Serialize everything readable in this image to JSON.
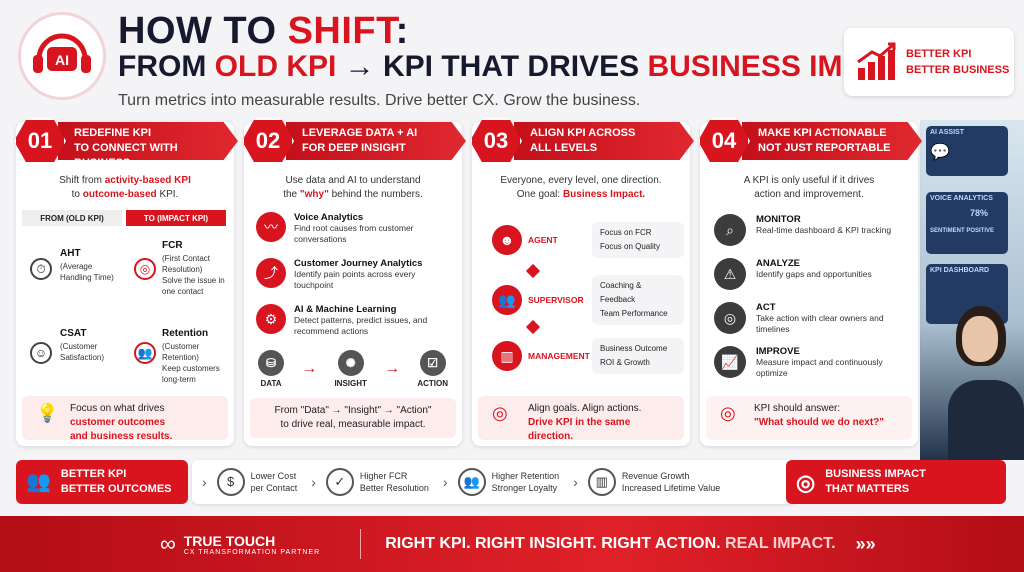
{
  "header": {
    "title_line1_prefix": "HOW TO ",
    "title_line1_accent": "SHIFT",
    "title_line1_suffix": ":",
    "title_line2_a": "FROM ",
    "title_line2_b": "OLD KPI",
    "title_line2_arrow": " → ",
    "title_line2_c": "KPI THAT DRIVES ",
    "title_line2_d": "BUSINESS IMPACT",
    "subtitle": "Turn metrics into measurable results. Drive better CX. Grow the business.",
    "logo_text": "AI",
    "badge_line1": "BETTER KPI",
    "badge_line2": "BETTER BUSINESS"
  },
  "photo": {
    "s1": "AI ASSIST",
    "s2": "VOICE ANALYTICS",
    "s2_val": "78%",
    "s2_sub": "SENTIMENT  POSITIVE",
    "s3": "KPI DASHBOARD"
  },
  "col1": {
    "num": "01",
    "h1": "REDEFINE KPI",
    "h2": "TO CONNECT WITH BUSINESS",
    "intro_a": "Shift from ",
    "intro_b": "activity-based KPI",
    "intro_c": "to ",
    "intro_d": "outcome-based",
    " intro_e": " KPI.",
    "intro_e": " KPI.",
    "from_h": "FROM (OLD KPI)",
    "to_h": "TO (IMPACT KPI)",
    "r1_old": "AHT",
    "r1_old_d": "(Average Handling Time)",
    "r1_new": "FCR",
    "r1_new_d": "(First Contact Resolution)",
    "r1_new_d2": "Solve the issue in one contact",
    "r2_old": "CSAT",
    "r2_old_d": "(Customer Satisfaction)",
    "r2_new": "Retention",
    "r2_new_d": "(Customer Retention)",
    "r2_new_d2": "Keep customers long-term",
    "foot_a": "Focus on what drives",
    "foot_b": "customer outcomes",
    "foot_c": "and business results."
  },
  "col2": {
    "num": "02",
    "h1": "LEVERAGE DATA + AI",
    "h2": "FOR DEEP INSIGHT",
    "intro_a": "Use data and AI to understand",
    "intro_b": "the ",
    "intro_c": "\"why\"",
    "intro_d": " behind the numbers.",
    "items": [
      {
        "t": "Voice Analytics",
        "d": "Find root causes from customer conversations"
      },
      {
        "t": "Customer Journey Analytics",
        "d": "Identify pain points across every touchpoint"
      },
      {
        "t": "AI & Machine Learning",
        "d": "Detect patterns, predict issues, and recommend actions"
      }
    ],
    "flow": [
      "DATA",
      "INSIGHT",
      "ACTION"
    ],
    "foot_a": "From \"Data\" → \"Insight\" → \"Action\"",
    "foot_b": "to drive real, measurable impact."
  },
  "col3": {
    "num": "03",
    "h1": "ALIGN KPI ACROSS",
    "h2": "ALL LEVELS",
    "intro_a": "Everyone, every level, one direction.",
    "intro_b": "One goal: ",
    "intro_c": "Business Impact.",
    "levels": [
      {
        "name": "AGENT",
        "a": "Focus on FCR",
        "b": "Focus on Quality"
      },
      {
        "name": "SUPERVISOR",
        "a": "Coaching & Feedback",
        "b": "Team Performance"
      },
      {
        "name": "MANAGEMENT",
        "a": "Business Outcome",
        "b": "ROI & Growth"
      }
    ],
    "foot_a": "Align goals. Align actions.",
    "foot_b": "Drive KPI in the same direction."
  },
  "col4": {
    "num": "04",
    "h1": "MAKE KPI ACTIONABLE",
    "h2": "NOT JUST REPORTABLE",
    "intro_a": "A KPI is only useful if it drives",
    "intro_b": "action and improvement.",
    "steps": [
      {
        "t": "MONITOR",
        "d": "Real-time dashboard & KPI tracking"
      },
      {
        "t": "ANALYZE",
        "d": "Identify gaps and opportunities"
      },
      {
        "t": "ACT",
        "d": "Take action with clear owners and timelines"
      },
      {
        "t": "IMPROVE",
        "d": "Measure impact and continuously optimize"
      }
    ],
    "foot_a": "KPI should answer:",
    "foot_b": "\"What should we do next?\""
  },
  "strip": {
    "left1": "BETTER KPI",
    "left2": "BETTER OUTCOMES",
    "items": [
      {
        "a": "Lower Cost",
        "b": "per Contact"
      },
      {
        "a": "Higher FCR",
        "b": "Better Resolution"
      },
      {
        "a": "Higher Retention",
        "b": "Stronger Loyalty"
      },
      {
        "a": "Revenue Growth",
        "b": "Increased Lifetime Value"
      }
    ],
    "right1": "BUSINESS IMPACT",
    "right2": "THAT MATTERS"
  },
  "footer": {
    "brand": "TRUE TOUCH",
    "brand_sub": "CX TRANSFORMATION PARTNER",
    "tag_a": "RIGHT KPI. RIGHT INSIGHT. RIGHT ACTION. ",
    "tag_b": "REAL IMPACT.",
    "arrows": "»»"
  },
  "colors": {
    "accent": "#d8151f",
    "dark": "#171a2e"
  }
}
